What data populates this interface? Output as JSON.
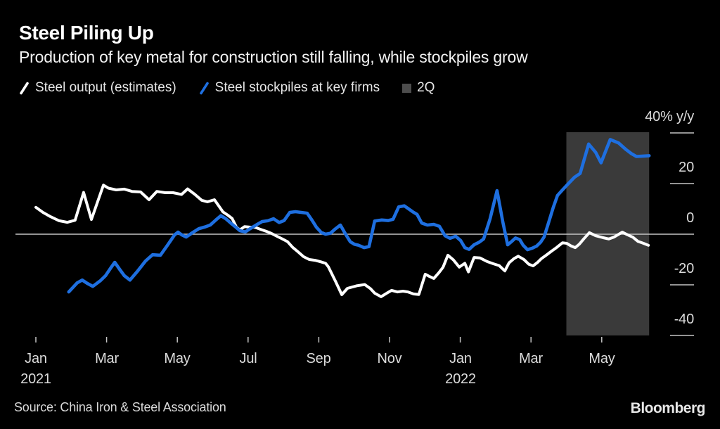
{
  "header": {
    "title": "Steel Piling Up",
    "subtitle": "Production of key metal for construction still falling, while stockpiles grow"
  },
  "legend": {
    "items": [
      {
        "label": "Steel output (estimates)",
        "swatch": "slash",
        "color": "#ffffff"
      },
      {
        "label": "Steel stockpiles at key firms",
        "swatch": "slash",
        "color": "#1e6fe0"
      },
      {
        "label": "2Q",
        "swatch": "square",
        "color": "#4d4d4d"
      }
    ]
  },
  "footer": {
    "source": "Source: China Iron & Steel Association",
    "brand": "Bloomberg"
  },
  "chart_data": {
    "type": "line",
    "unit": "% y/y",
    "x_axis": {
      "note": "x is months since Jan 2021 (0 = Jan 2021)",
      "ticks": [
        {
          "m": 0,
          "label": "Jan",
          "year": "2021"
        },
        {
          "m": 2,
          "label": "Mar"
        },
        {
          "m": 4,
          "label": "May"
        },
        {
          "m": 6,
          "label": "Jul"
        },
        {
          "m": 8,
          "label": "Sep"
        },
        {
          "m": 10,
          "label": "Nov"
        },
        {
          "m": 12,
          "label": "Jan",
          "year": "2022"
        },
        {
          "m": 14,
          "label": "Mar"
        },
        {
          "m": 16,
          "label": "May"
        }
      ]
    },
    "y_axis": {
      "range": [
        -40,
        40
      ],
      "ticks": [
        {
          "v": 40,
          "label": "40% y/y"
        },
        {
          "v": 20,
          "label": "20"
        },
        {
          "v": 0,
          "label": "0"
        },
        {
          "v": -20,
          "label": "-20"
        },
        {
          "v": -40,
          "label": "-40"
        }
      ]
    },
    "band": {
      "label": "2Q",
      "from_m": 15.0,
      "to_m": 17.34,
      "top_v": 40.3,
      "bottom_v": -40,
      "color": "#3a3a3a"
    },
    "grid_color": "#c4c4c4",
    "series": [
      {
        "name": "Steel output (estimates)",
        "color": "#ffffff",
        "stroke_width": 4,
        "points": [
          [
            0.0,
            10.6
          ],
          [
            0.2,
            8.6
          ],
          [
            0.42,
            6.9
          ],
          [
            0.66,
            5.3
          ],
          [
            0.89,
            4.7
          ],
          [
            1.11,
            5.5
          ],
          [
            1.35,
            16.5
          ],
          [
            1.57,
            5.8
          ],
          [
            1.91,
            19.4
          ],
          [
            2.05,
            18.2
          ],
          [
            2.27,
            17.5
          ],
          [
            2.5,
            17.8
          ],
          [
            2.72,
            16.9
          ],
          [
            2.96,
            16.7
          ],
          [
            3.2,
            13.6
          ],
          [
            3.42,
            16.9
          ],
          [
            3.66,
            16.4
          ],
          [
            3.88,
            16.4
          ],
          [
            4.12,
            15.7
          ],
          [
            4.29,
            17.9
          ],
          [
            4.49,
            15.8
          ],
          [
            4.69,
            13.4
          ],
          [
            4.85,
            12.8
          ],
          [
            5.05,
            13.6
          ],
          [
            5.29,
            8.8
          ],
          [
            5.43,
            7.5
          ],
          [
            5.55,
            6.2
          ],
          [
            5.67,
            2.8
          ],
          [
            5.77,
            1.7
          ],
          [
            5.9,
            3.0
          ],
          [
            6.04,
            2.8
          ],
          [
            6.2,
            2.7
          ],
          [
            6.36,
            1.9
          ],
          [
            6.52,
            1.1
          ],
          [
            6.66,
            0.3
          ],
          [
            6.8,
            -0.7
          ],
          [
            6.96,
            -1.8
          ],
          [
            7.12,
            -3.0
          ],
          [
            7.26,
            -5.2
          ],
          [
            7.4,
            -6.8
          ],
          [
            7.57,
            -8.9
          ],
          [
            7.73,
            -10.0
          ],
          [
            7.89,
            -10.3
          ],
          [
            8.05,
            -10.9
          ],
          [
            8.19,
            -11.5
          ],
          [
            8.27,
            -12.9
          ],
          [
            8.47,
            -18.5
          ],
          [
            8.65,
            -23.9
          ],
          [
            8.81,
            -21.4
          ],
          [
            9.07,
            -20.4
          ],
          [
            9.3,
            -19.9
          ],
          [
            9.46,
            -21.5
          ],
          [
            9.58,
            -23.3
          ],
          [
            9.76,
            -24.7
          ],
          [
            9.92,
            -23.3
          ],
          [
            10.06,
            -22.2
          ],
          [
            10.22,
            -22.8
          ],
          [
            10.38,
            -22.5
          ],
          [
            10.52,
            -22.8
          ],
          [
            10.68,
            -23.6
          ],
          [
            10.83,
            -23.8
          ],
          [
            11.01,
            -15.8
          ],
          [
            11.13,
            -16.7
          ],
          [
            11.25,
            -17.5
          ],
          [
            11.39,
            -15.3
          ],
          [
            11.51,
            -13.1
          ],
          [
            11.65,
            -8.3
          ],
          [
            11.81,
            -10.2
          ],
          [
            11.97,
            -13.0
          ],
          [
            12.13,
            -11.5
          ],
          [
            12.23,
            -14.9
          ],
          [
            12.39,
            -9.2
          ],
          [
            12.56,
            -9.4
          ],
          [
            12.76,
            -10.8
          ],
          [
            12.94,
            -11.7
          ],
          [
            13.1,
            -12.4
          ],
          [
            13.26,
            -14.5
          ],
          [
            13.38,
            -11.3
          ],
          [
            13.52,
            -9.6
          ],
          [
            13.64,
            -8.7
          ],
          [
            13.8,
            -10.0
          ],
          [
            13.94,
            -11.9
          ],
          [
            14.06,
            -12.5
          ],
          [
            14.18,
            -11.2
          ],
          [
            14.29,
            -9.7
          ],
          [
            14.43,
            -8.3
          ],
          [
            14.57,
            -6.8
          ],
          [
            14.73,
            -5.2
          ],
          [
            14.89,
            -3.4
          ],
          [
            15.01,
            -3.6
          ],
          [
            15.13,
            -4.6
          ],
          [
            15.25,
            -5.3
          ],
          [
            15.37,
            -3.9
          ],
          [
            15.49,
            -1.9
          ],
          [
            15.65,
            0.6
          ],
          [
            15.83,
            -0.6
          ],
          [
            16.04,
            -1.4
          ],
          [
            16.2,
            -1.9
          ],
          [
            16.34,
            -1.2
          ],
          [
            16.58,
            0.8
          ],
          [
            16.74,
            -0.3
          ],
          [
            16.88,
            -1.2
          ],
          [
            17.02,
            -2.8
          ],
          [
            17.18,
            -3.6
          ],
          [
            17.32,
            -4.4
          ]
        ]
      },
      {
        "name": "Steel stockpiles at key firms",
        "color": "#1e6fe0",
        "stroke_width": 4.6,
        "points": [
          [
            0.93,
            -22.8
          ],
          [
            1.17,
            -19.2
          ],
          [
            1.31,
            -18.1
          ],
          [
            1.45,
            -19.4
          ],
          [
            1.61,
            -20.6
          ],
          [
            1.83,
            -18.3
          ],
          [
            1.97,
            -16.4
          ],
          [
            2.11,
            -13.5
          ],
          [
            2.23,
            -11.1
          ],
          [
            2.37,
            -13.9
          ],
          [
            2.5,
            -16.4
          ],
          [
            2.66,
            -18.1
          ],
          [
            2.88,
            -14.5
          ],
          [
            3.1,
            -10.6
          ],
          [
            3.3,
            -8.1
          ],
          [
            3.52,
            -8.3
          ],
          [
            3.72,
            -4.4
          ],
          [
            3.92,
            -0.3
          ],
          [
            4.02,
            0.8
          ],
          [
            4.13,
            -0.3
          ],
          [
            4.25,
            -1.1
          ],
          [
            4.43,
            0.6
          ],
          [
            4.61,
            2.2
          ],
          [
            4.77,
            2.8
          ],
          [
            4.93,
            3.6
          ],
          [
            5.09,
            5.6
          ],
          [
            5.23,
            7.3
          ],
          [
            5.37,
            6.1
          ],
          [
            5.51,
            4.4
          ],
          [
            5.65,
            2.8
          ],
          [
            5.77,
            1.4
          ],
          [
            5.92,
            0.9
          ],
          [
            6.06,
            2.2
          ],
          [
            6.26,
            3.9
          ],
          [
            6.4,
            5.0
          ],
          [
            6.56,
            5.3
          ],
          [
            6.72,
            6.1
          ],
          [
            6.88,
            4.6
          ],
          [
            7.02,
            5.4
          ],
          [
            7.18,
            8.6
          ],
          [
            7.34,
            8.9
          ],
          [
            7.5,
            8.6
          ],
          [
            7.67,
            8.3
          ],
          [
            7.81,
            5.5
          ],
          [
            7.93,
            2.8
          ],
          [
            8.07,
            0.7
          ],
          [
            8.19,
            0.0
          ],
          [
            8.33,
            0.4
          ],
          [
            8.47,
            2.1
          ],
          [
            8.61,
            3.6
          ],
          [
            8.75,
            0.2
          ],
          [
            8.89,
            -3.0
          ],
          [
            9.01,
            -4.0
          ],
          [
            9.13,
            -4.4
          ],
          [
            9.28,
            -5.3
          ],
          [
            9.42,
            -4.9
          ],
          [
            9.58,
            5.2
          ],
          [
            9.78,
            5.6
          ],
          [
            9.96,
            5.4
          ],
          [
            10.1,
            5.9
          ],
          [
            10.26,
            10.8
          ],
          [
            10.42,
            11.2
          ],
          [
            10.66,
            8.8
          ],
          [
            10.78,
            7.8
          ],
          [
            10.91,
            4.4
          ],
          [
            11.07,
            3.6
          ],
          [
            11.25,
            3.9
          ],
          [
            11.41,
            3.1
          ],
          [
            11.57,
            -0.6
          ],
          [
            11.71,
            -1.6
          ],
          [
            11.87,
            -0.8
          ],
          [
            12.01,
            -2.5
          ],
          [
            12.13,
            -5.3
          ],
          [
            12.25,
            -6.0
          ],
          [
            12.39,
            -4.2
          ],
          [
            12.54,
            -3.1
          ],
          [
            12.66,
            -1.9
          ],
          [
            12.84,
            6.0
          ],
          [
            13.04,
            17.2
          ],
          [
            13.2,
            5.0
          ],
          [
            13.34,
            -4.2
          ],
          [
            13.46,
            -2.8
          ],
          [
            13.56,
            -1.5
          ],
          [
            13.68,
            -2.1
          ],
          [
            13.78,
            -4.4
          ],
          [
            13.9,
            -6.1
          ],
          [
            14.04,
            -5.5
          ],
          [
            14.16,
            -4.7
          ],
          [
            14.27,
            -3.2
          ],
          [
            14.37,
            -1.1
          ],
          [
            14.49,
            4.2
          ],
          [
            14.63,
            10.6
          ],
          [
            14.75,
            15.3
          ],
          [
            14.89,
            17.5
          ],
          [
            15.05,
            19.9
          ],
          [
            15.23,
            22.5
          ],
          [
            15.39,
            24.0
          ],
          [
            15.63,
            35.6
          ],
          [
            15.83,
            32.3
          ],
          [
            15.98,
            28.2
          ],
          [
            16.24,
            37.4
          ],
          [
            16.48,
            36.0
          ],
          [
            16.68,
            33.5
          ],
          [
            16.84,
            31.8
          ],
          [
            16.98,
            30.7
          ],
          [
            17.14,
            30.8
          ],
          [
            17.34,
            31.0
          ]
        ]
      }
    ]
  }
}
